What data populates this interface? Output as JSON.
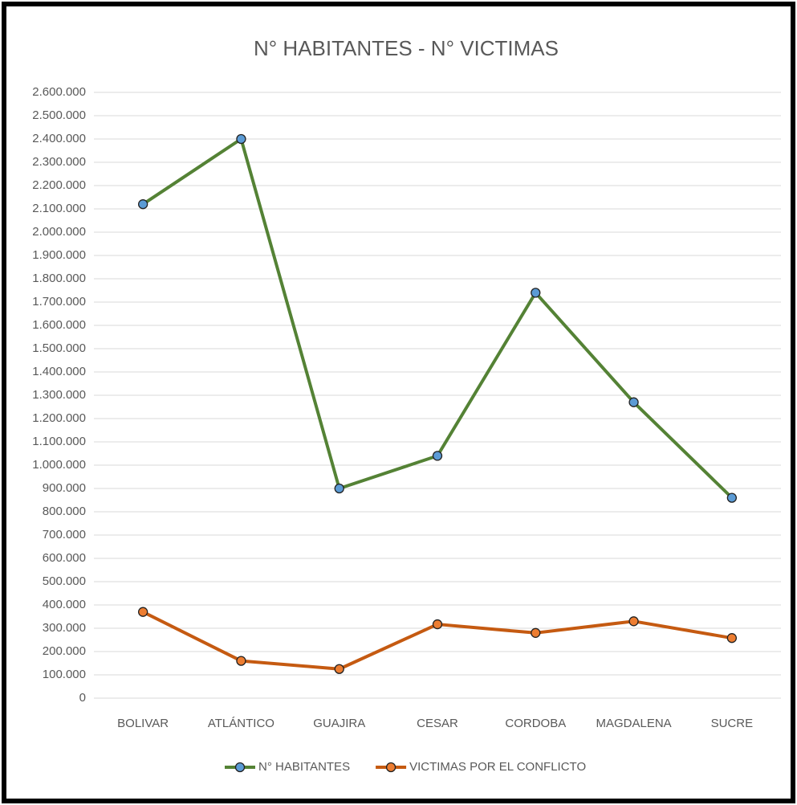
{
  "chart_data": {
    "type": "line",
    "title": "N° HABITANTES - N° VICTIMAS",
    "categories": [
      "BOLIVAR",
      "ATLÁNTICO",
      "GUAJIRA",
      "CESAR",
      "CORDOBA",
      "MAGDALENA",
      "SUCRE"
    ],
    "series": [
      {
        "name": "N° HABITANTES",
        "color": "#548235",
        "marker_color": "#5b9bd5",
        "values": [
          2120000,
          2400000,
          900000,
          1040000,
          1740000,
          1270000,
          860000
        ]
      },
      {
        "name": "VICTIMAS POR EL CONFLICTO",
        "color": "#c55a11",
        "marker_color": "#ed7d31",
        "values": [
          370000,
          160000,
          125000,
          317000,
          280000,
          330000,
          258000
        ]
      }
    ],
    "ylim": [
      0,
      2600000
    ],
    "yticks": [
      0,
      {
        "value": 100000,
        "label": "100.000"
      },
      {
        "value": 200000,
        "label": "200.000"
      },
      {
        "value": 300000,
        "label": "300.000"
      },
      {
        "value": 400000,
        "label": "400.000"
      },
      {
        "value": 500000,
        "label": "500.000"
      },
      {
        "value": 600000,
        "label": "600.000"
      },
      {
        "value": 700000,
        "label": "700.000"
      },
      {
        "value": 800000,
        "label": "800.000"
      },
      {
        "value": 900000,
        "label": "900.000"
      },
      {
        "value": 1000000,
        "label": "1.000.000"
      },
      {
        "value": 1100000,
        "label": "1.100.000"
      },
      {
        "value": 1200000,
        "label": "1.200.000"
      },
      {
        "value": 1300000,
        "label": "1.300.000"
      },
      {
        "value": 1400000,
        "label": "1.400.000"
      },
      {
        "value": 1500000,
        "label": "1.500.000"
      },
      {
        "value": 1600000,
        "label": "1.600.000"
      },
      {
        "value": 1700000,
        "label": "1.700.000"
      },
      {
        "value": 1800000,
        "label": "1.800.000"
      },
      {
        "value": 1900000,
        "label": "1.900.000"
      },
      {
        "value": 2000000,
        "label": "2.000.000"
      },
      {
        "value": 2100000,
        "label": "2.100.000"
      },
      {
        "value": 2200000,
        "label": "2.200.000"
      },
      {
        "value": 2300000,
        "label": "2.300.000"
      },
      {
        "value": 2400000,
        "label": "2.400.000"
      },
      {
        "value": 2500000,
        "label": "2.500.000"
      },
      {
        "value": 2600000,
        "label": "2.600.000"
      }
    ],
    "grid": true,
    "legend": "bottom"
  }
}
